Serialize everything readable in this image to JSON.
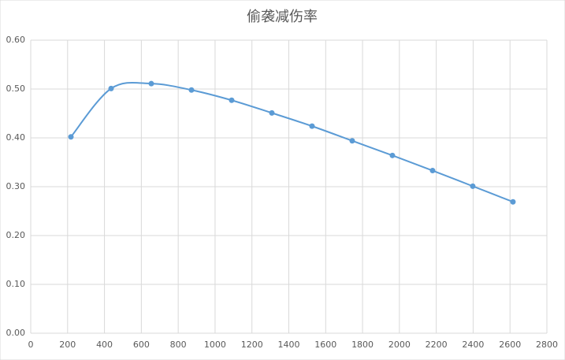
{
  "chart_data": {
    "type": "scatter",
    "title": "偷袭减伤率",
    "series": [
      {
        "color": "#5b9bd5",
        "x": [
          218,
          436,
          654,
          872,
          1090,
          1308,
          1526,
          1744,
          1962,
          2180,
          2398,
          2616
        ],
        "values": [
          0.402,
          0.501,
          0.511,
          0.498,
          0.477,
          0.451,
          0.424,
          0.394,
          0.364,
          0.333,
          0.301,
          0.269
        ]
      }
    ],
    "smooth": true,
    "xlim": [
      0,
      2800
    ],
    "xticks": [
      0,
      200,
      400,
      600,
      800,
      1000,
      1200,
      1400,
      1600,
      1800,
      2000,
      2200,
      2400,
      2600,
      2800
    ],
    "ylim": [
      0,
      0.6
    ],
    "yticks": [
      {
        "value": 0,
        "label": "0.00"
      },
      {
        "value": 0.1,
        "label": "0.10"
      },
      {
        "value": 0.2,
        "label": "0.20"
      },
      {
        "value": 0.3,
        "label": "0.30"
      },
      {
        "value": 0.4,
        "label": "0.40"
      },
      {
        "value": 0.5,
        "label": "0.50"
      },
      {
        "value": 0.6,
        "label": "0.60"
      }
    ],
    "grid": true
  }
}
